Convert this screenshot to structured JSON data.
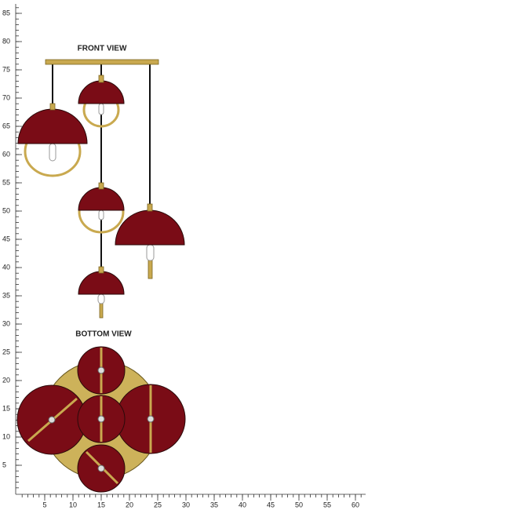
{
  "front_view": {
    "label": "FRONT VIEW"
  },
  "bottom_view": {
    "label": "BOTTOM VIEW"
  },
  "ruler": {
    "y_ticks": [
      5,
      10,
      15,
      20,
      25,
      30,
      35,
      40,
      45,
      50,
      55,
      60,
      65,
      70,
      75,
      80,
      85
    ],
    "x_ticks": [
      5,
      10,
      15,
      20,
      25,
      30,
      35,
      40,
      45,
      50,
      55,
      60
    ]
  }
}
